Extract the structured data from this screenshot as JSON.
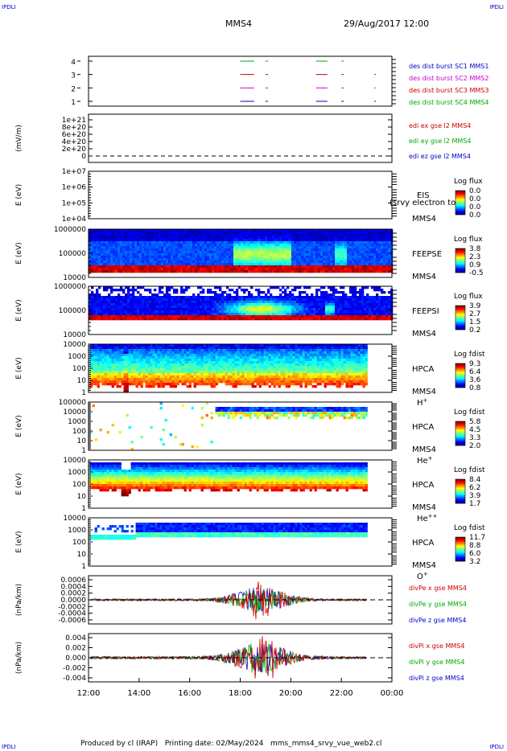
{
  "header": {
    "corner_left": "IPDLI",
    "corner_right": "IPDLI",
    "title": "MMS4",
    "datetime": "29/Aug/2017 12:00",
    "corner_bottom_left": "IPDLI",
    "corner_bottom_right": "IPDLI"
  },
  "footer": {
    "text": "Produced by cl (IRAP)   Printing date: 02/May/2024   mms_mms4_srvy_vue_web2.cl"
  },
  "chart_data": {
    "type": "multi-panel time series / spectrogram",
    "x_axis": {
      "unit": "UT",
      "range": [
        "12:00",
        "00:00"
      ],
      "ticks": [
        "12:00",
        "14:00",
        "16:00",
        "18:00",
        "20:00",
        "22:00",
        "00:00"
      ]
    },
    "colors": {
      "blue": "#0000cc",
      "green": "#00aa00",
      "red": "#cc0000",
      "magenta": "#cc00cc",
      "ex": "#cc0000",
      "ey": "#00aa00",
      "ez": "#0000cc"
    },
    "panels": [
      {
        "id": "burst",
        "type": "timeline",
        "yticks": [
          "4",
          "3",
          "2",
          "1"
        ],
        "ylabel": "",
        "labels": [
          {
            "text": "des dist burst SC1 MMS1",
            "color": "#0000cc"
          },
          {
            "text": "des dist burst SC2 MMS2",
            "color": "#cc00cc"
          },
          {
            "text": "des dist burst SC3 MMS3",
            "color": "#cc0000"
          },
          {
            "text": "des dist burst SC4 MMS4",
            "color": "#00aa00"
          }
        ],
        "segments": [
          {
            "row": 4,
            "start_h": 18.0,
            "end_h": 18.55,
            "color": "#00aa00"
          },
          {
            "row": 4,
            "start_h": 19.0,
            "end_h": 19.1,
            "color": "#00aa00"
          },
          {
            "row": 4,
            "start_h": 21.0,
            "end_h": 21.45,
            "color": "#00aa00"
          },
          {
            "row": 4,
            "start_h": 22.0,
            "end_h": 22.1,
            "color": "#00aa00"
          },
          {
            "row": 3,
            "start_h": 18.0,
            "end_h": 18.55,
            "color": "#cc0000"
          },
          {
            "row": 3,
            "start_h": 19.0,
            "end_h": 19.1,
            "color": "#cc0000"
          },
          {
            "row": 3,
            "start_h": 21.0,
            "end_h": 21.45,
            "color": "#cc0000"
          },
          {
            "row": 3,
            "start_h": 22.0,
            "end_h": 22.1,
            "color": "#cc0000"
          },
          {
            "row": 3,
            "start_h": 23.3,
            "end_h": 23.36,
            "color": "#cc0000"
          },
          {
            "row": 2,
            "start_h": 18.0,
            "end_h": 18.55,
            "color": "#cc00cc"
          },
          {
            "row": 2,
            "start_h": 19.0,
            "end_h": 19.1,
            "color": "#cc00cc"
          },
          {
            "row": 2,
            "start_h": 21.0,
            "end_h": 21.45,
            "color": "#cc00cc"
          },
          {
            "row": 2,
            "start_h": 22.0,
            "end_h": 22.1,
            "color": "#cc00cc"
          },
          {
            "row": 2,
            "start_h": 23.3,
            "end_h": 23.36,
            "color": "#cc00cc"
          },
          {
            "row": 1,
            "start_h": 18.0,
            "end_h": 18.55,
            "color": "#0000cc"
          },
          {
            "row": 1,
            "start_h": 19.0,
            "end_h": 19.1,
            "color": "#0000cc"
          },
          {
            "row": 1,
            "start_h": 21.0,
            "end_h": 21.45,
            "color": "#0000cc"
          },
          {
            "row": 1,
            "start_h": 22.0,
            "end_h": 22.1,
            "color": "#0000cc"
          },
          {
            "row": 1,
            "start_h": 23.3,
            "end_h": 23.36,
            "color": "#0000cc"
          }
        ]
      },
      {
        "id": "edi",
        "type": "line",
        "ylabel": "(mV/m)",
        "yticks": [
          "1e+21",
          "8e+20",
          "6e+20",
          "4e+20",
          "2e+20",
          "0"
        ],
        "labels": [
          {
            "text": "edi ex gse l2 MMS4",
            "color": "#cc0000"
          },
          {
            "text": "edi ey gse l2 MMS4",
            "color": "#00aa00"
          },
          {
            "text": "edi ez gse l2 MMS4",
            "color": "#0000cc"
          }
        ]
      },
      {
        "id": "eis",
        "type": "spectrogram",
        "ylabel": "E (eV)",
        "yticks": [
          "1e+07",
          "1e+06",
          "1e+05",
          "1e+04"
        ],
        "instrument": "EIS",
        "sc": "MMS4",
        "overlay": "(srvy electron to",
        "cbar_title": "Log flux",
        "cbar_ticks": [
          "0.0",
          "0.0",
          "0.0",
          "0.0"
        ]
      },
      {
        "id": "feepse",
        "type": "spectrogram",
        "ylabel": "E (eV)",
        "yticks": [
          "1000000",
          "100000",
          "10000"
        ],
        "instrument": "FEEPSE",
        "sc": "MMS4",
        "cbar_title": "Log flux",
        "cbar_ticks": [
          "3.8",
          "2.3",
          "0.9",
          "-0.5"
        ]
      },
      {
        "id": "feepsi",
        "type": "spectrogram",
        "ylabel": "E (eV)",
        "yticks": [
          "1000000",
          "100000",
          "10000"
        ],
        "instrument": "FEEPSI",
        "sc": "MMS4",
        "cbar_title": "Log flux",
        "cbar_ticks": [
          "3.9",
          "2.7",
          "1.5",
          "0.2"
        ]
      },
      {
        "id": "hpca_h",
        "type": "spectrogram",
        "ylabel": "E (eV)",
        "yticks": [
          "10000",
          "1000",
          "100",
          "10",
          "1"
        ],
        "instrument": "HPCA",
        "sc": "MMS4",
        "species": "H",
        "charge": "+",
        "cbar_title": "Log fdist",
        "cbar_ticks": [
          "9.3",
          "6.4",
          "3.6",
          "0.8"
        ]
      },
      {
        "id": "hpca_he1",
        "type": "spectrogram",
        "ylabel": "E (eV)",
        "yticks": [
          "100000",
          "10000",
          "1000",
          "100",
          "10",
          "1"
        ],
        "instrument": "HPCA",
        "sc": "MMS4",
        "species": "He",
        "charge": "+",
        "cbar_title": "Log fdist",
        "cbar_ticks": [
          "5.8",
          "4.5",
          "3.3",
          "2.0"
        ]
      },
      {
        "id": "hpca_he2",
        "type": "spectrogram",
        "ylabel": "E (eV)",
        "yticks": [
          "10000",
          "1000",
          "100",
          "10",
          "1"
        ],
        "instrument": "HPCA",
        "sc": "MMS4",
        "species": "He",
        "charge": "++",
        "cbar_title": "Log fdist",
        "cbar_ticks": [
          "8.4",
          "6.2",
          "3.9",
          "1.7"
        ]
      },
      {
        "id": "hpca_o",
        "type": "spectrogram",
        "ylabel": "E (eV)",
        "yticks": [
          "10000",
          "1000",
          "100",
          "10",
          "1"
        ],
        "instrument": "HPCA",
        "sc": "MMS4",
        "species": "O",
        "charge": "+",
        "cbar_title": "Log fdist",
        "cbar_ticks": [
          "11.7",
          "8.8",
          "6.0",
          "3.2"
        ]
      },
      {
        "id": "divpe",
        "type": "line",
        "ylabel": "(nPa/km)",
        "yticks": [
          "0.0006",
          "0.0004",
          "0.0002",
          "0.0000",
          "-0.0002",
          "-0.0004",
          "-0.0006"
        ],
        "labels": [
          {
            "text": "divPe x gse MMS4",
            "color": "#cc0000"
          },
          {
            "text": "divPe y gse MMS4",
            "color": "#00aa00"
          },
          {
            "text": "divPe z gse MMS4",
            "color": "#0000cc"
          }
        ]
      },
      {
        "id": "divpi",
        "type": "line",
        "ylabel": "(nPa/km)",
        "yticks": [
          "0.004",
          "0.002",
          "0.000",
          "-0.002",
          "-0.004"
        ],
        "labels": [
          {
            "text": "divPi x gse MMS4",
            "color": "#cc0000"
          },
          {
            "text": "divPi y gse MMS4",
            "color": "#00aa00"
          },
          {
            "text": "divPi z gse MMS4",
            "color": "#0000cc"
          }
        ]
      }
    ]
  }
}
